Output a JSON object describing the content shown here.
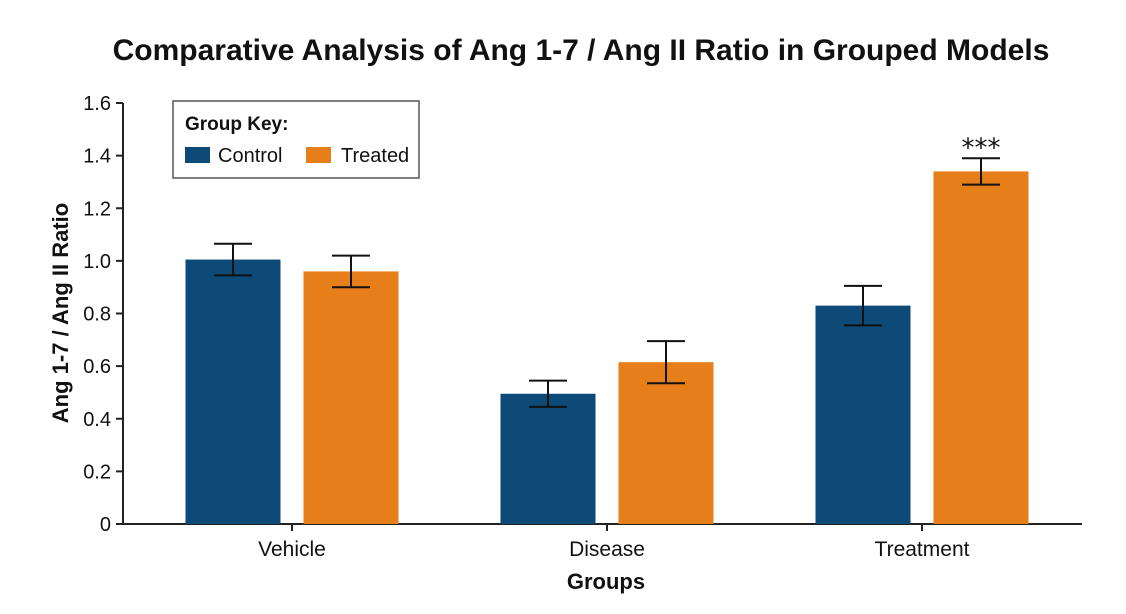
{
  "chart_data": {
    "type": "bar",
    "title": "Comparative Analysis of Ang 1-7 / Ang II Ratio in Grouped Models",
    "xlabel": "Groups",
    "ylabel": "Ang 1-7 / Ang II Ratio",
    "categories": [
      "Vehicle",
      "Disease",
      "Treatment"
    ],
    "ylim": [
      0,
      1.6
    ],
    "yticks": [
      0,
      0.2,
      0.4,
      0.6,
      0.8,
      1.0,
      1.2,
      1.4,
      1.6
    ],
    "ytick_labels": [
      "0",
      "0.2",
      "0.4",
      "0.6",
      "0.8",
      "1.0",
      "1.2",
      "1.4",
      "1.6"
    ],
    "series": [
      {
        "name": "Control",
        "color": "#0d4a77",
        "values": [
          1.005,
          0.495,
          0.83
        ],
        "error": [
          0.06,
          0.05,
          0.075
        ]
      },
      {
        "name": "Treated",
        "color": "#e67e1a",
        "values": [
          0.96,
          0.615,
          1.34
        ],
        "error": [
          0.06,
          0.08,
          0.05
        ]
      }
    ],
    "legend": {
      "title": "Group Key:",
      "placement": "top-left"
    },
    "annotations": [
      {
        "text": "***",
        "category": "Treatment",
        "series": "Treated"
      }
    ],
    "grid": false
  }
}
